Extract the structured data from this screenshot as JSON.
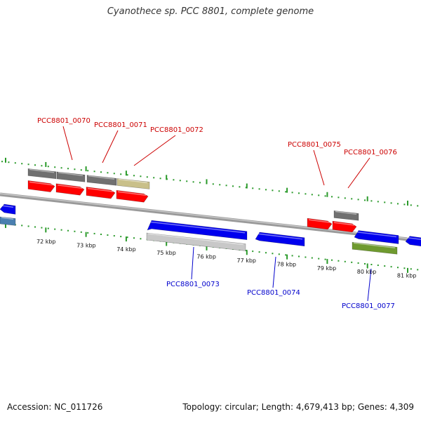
{
  "title": "Cyanothece sp. PCC 8801, complete genome",
  "footer": {
    "accession": "Accession: NC_011726",
    "summary": "Topology: circular; Length: 4,679,413 bp; Genes: 4,309"
  },
  "colors": {
    "forward_cds": "#ff0000",
    "reverse_cds": "#0000ee",
    "forward_gene": "#707070",
    "reverse_gene": "#c8c8c8",
    "forward_label": "#cc0000",
    "reverse_label": "#0000cc",
    "tick": "#2a9a2a",
    "backbone": "#808080",
    "olive_gene": "#c9c08a",
    "green_gene": "#6f9a2f",
    "steel_gene": "#4a7fb0"
  },
  "kbp_labels": [
    "72 kbp",
    "73 kbp",
    "74 kbp",
    "75 kbp",
    "76 kbp",
    "77 kbp",
    "78 kbp",
    "79 kbp",
    "80 kbp",
    "81 kbp"
  ],
  "forward_genes": [
    "PCC8801_0070",
    "PCC8801_0071",
    "PCC8801_0072",
    "PCC8801_0075",
    "PCC8801_0076"
  ],
  "reverse_genes": [
    "PCC8801_0073",
    "PCC8801_0074",
    "PCC8801_0077"
  ]
}
